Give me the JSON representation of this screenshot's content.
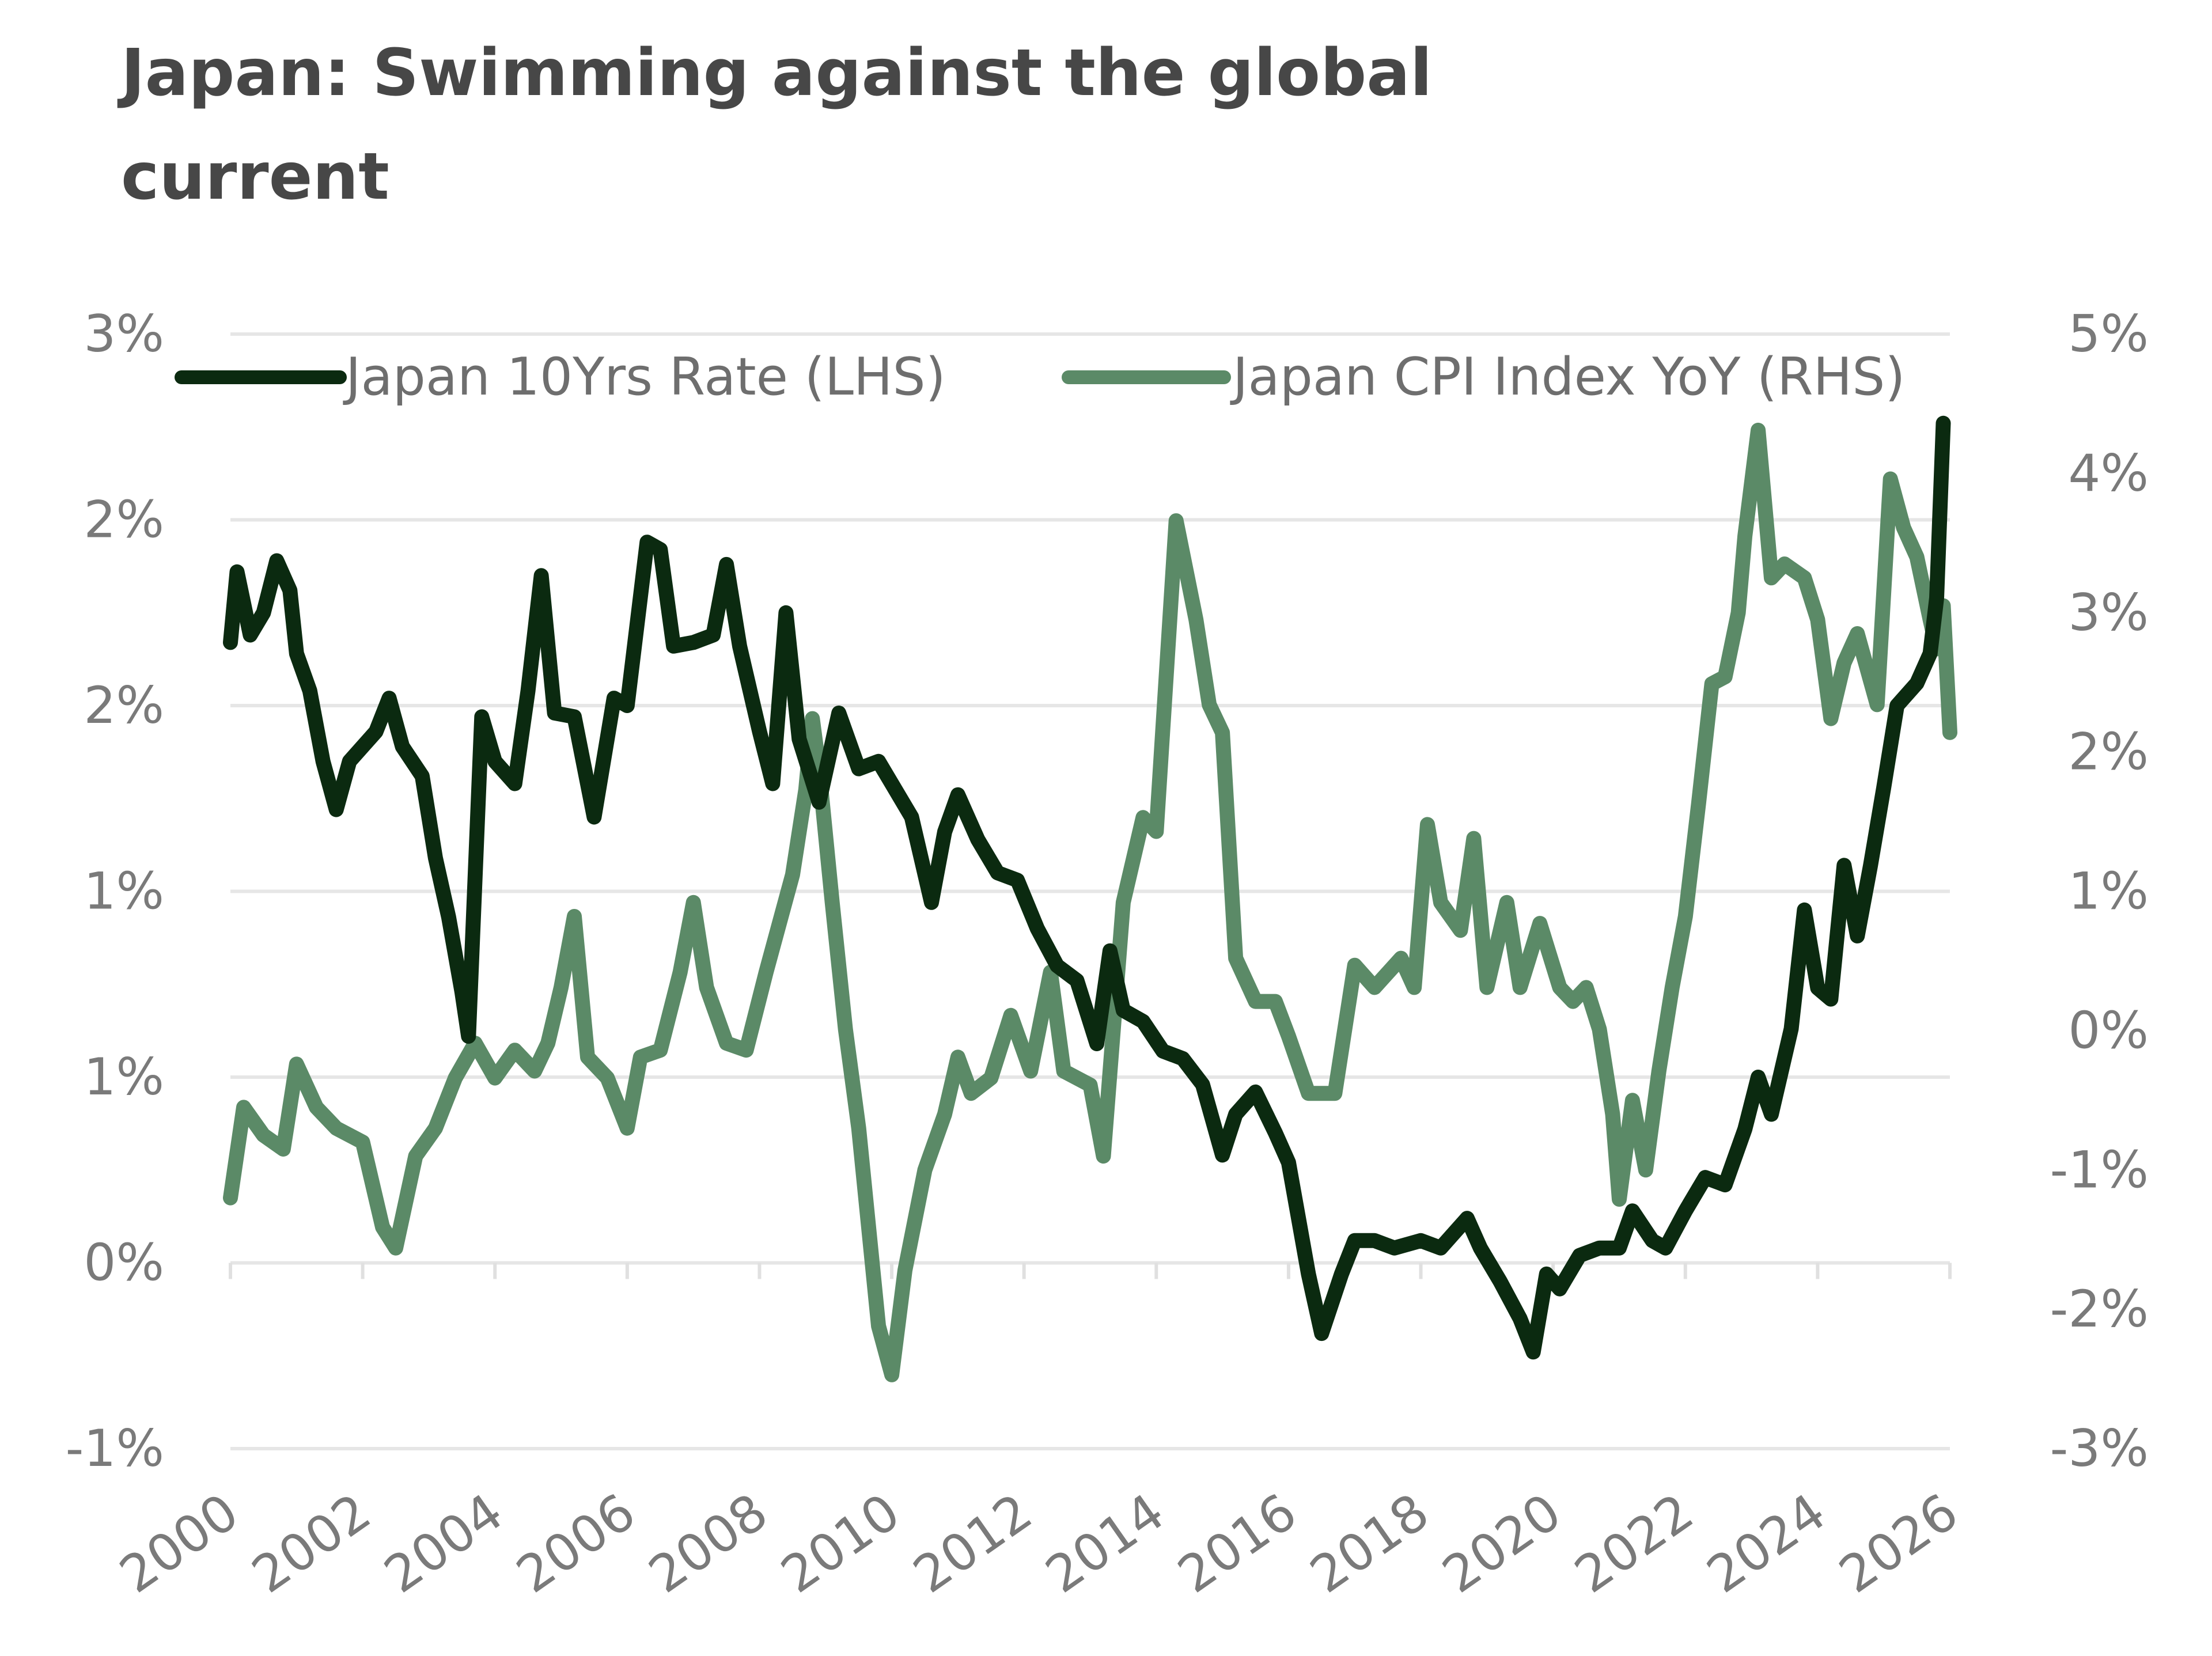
{
  "chart_data": {
    "type": "line",
    "title": "Japan: Swimming against the global current",
    "title_lines": [
      "Japan: Swimming against the global",
      "current"
    ],
    "xlabel": "",
    "ylabel_left": "",
    "ylabel_right": "",
    "x_range": [
      2000,
      2026
    ],
    "x_ticks": [
      2000,
      2002,
      2004,
      2006,
      2008,
      2010,
      2012,
      2014,
      2016,
      2018,
      2020,
      2022,
      2024,
      2026
    ],
    "x_tick_labels": [
      "2000",
      "2002",
      "2004",
      "2006",
      "2008",
      "2010",
      "2012",
      "2014",
      "2016",
      "2018",
      "2020",
      "2022",
      "2024",
      "2026"
    ],
    "y_left": {
      "range": [
        -0.5,
        2.5
      ],
      "ticks": [
        2.5,
        2.0,
        1.5,
        1.0,
        0.5,
        0.0,
        -0.5
      ],
      "tick_labels": [
        "3%",
        "2%",
        "2%",
        "1%",
        "1%",
        "0%",
        "-1%"
      ]
    },
    "y_right": {
      "range": [
        -3,
        5
      ],
      "ticks": [
        5,
        4,
        3,
        2,
        1,
        0,
        -1,
        -2,
        -3
      ],
      "tick_labels": [
        "5%",
        "4%",
        "3%",
        "2%",
        "1%",
        "0%",
        "-1%",
        "-2%",
        "-3%"
      ]
    },
    "grid": true,
    "legend_position": "top",
    "series": [
      {
        "name": "Japan 10Yrs Rate (LHS)",
        "axis": "left",
        "color": "#0b2a10",
        "x": [
          2000.0,
          2000.1,
          2000.3,
          2000.5,
          2000.7,
          2000.9,
          2001.0,
          2001.2,
          2001.4,
          2001.6,
          2001.8,
          2002.0,
          2002.2,
          2002.4,
          2002.6,
          2002.9,
          2003.1,
          2003.3,
          2003.5,
          2003.6,
          2003.8,
          2004.0,
          2004.3,
          2004.5,
          2004.7,
          2004.9,
          2005.2,
          2005.5,
          2005.8,
          2006.0,
          2006.3,
          2006.5,
          2006.7,
          2007.0,
          2007.3,
          2007.5,
          2007.7,
          2008.0,
          2008.2,
          2008.4,
          2008.6,
          2008.9,
          2009.2,
          2009.5,
          2009.8,
          2010.0,
          2010.3,
          2010.6,
          2010.8,
          2011.0,
          2011.3,
          2011.6,
          2011.9,
          2012.2,
          2012.5,
          2012.8,
          2013.1,
          2013.3,
          2013.5,
          2013.8,
          2014.1,
          2014.4,
          2014.7,
          2015.0,
          2015.2,
          2015.5,
          2015.8,
          2016.0,
          2016.3,
          2016.5,
          2016.8,
          2017.0,
          2017.3,
          2017.6,
          2018.0,
          2018.3,
          2018.7,
          2018.9,
          2019.2,
          2019.5,
          2019.7,
          2019.9,
          2020.1,
          2020.4,
          2020.7,
          2021.0,
          2021.2,
          2021.5,
          2021.7,
          2022.0,
          2022.3,
          2022.6,
          2022.9,
          2023.1,
          2023.3,
          2023.6,
          2023.8,
          2024.0,
          2024.2,
          2024.4,
          2024.6,
          2024.8,
          2025.0,
          2025.2,
          2025.5,
          2025.7,
          2025.8,
          2025.9
        ],
        "values": [
          1.67,
          1.86,
          1.69,
          1.75,
          1.89,
          1.81,
          1.64,
          1.54,
          1.35,
          1.22,
          1.35,
          1.39,
          1.43,
          1.52,
          1.39,
          1.31,
          1.09,
          0.93,
          0.73,
          0.61,
          1.47,
          1.35,
          1.29,
          1.54,
          1.85,
          1.48,
          1.47,
          1.2,
          1.52,
          1.5,
          1.94,
          1.92,
          1.66,
          1.67,
          1.69,
          1.88,
          1.66,
          1.43,
          1.29,
          1.75,
          1.41,
          1.24,
          1.48,
          1.33,
          1.35,
          1.29,
          1.2,
          0.97,
          1.16,
          1.26,
          1.14,
          1.05,
          1.03,
          0.9,
          0.8,
          0.76,
          0.59,
          0.84,
          0.68,
          0.65,
          0.57,
          0.55,
          0.48,
          0.29,
          0.4,
          0.46,
          0.35,
          0.27,
          -0.03,
          -0.19,
          -0.03,
          0.06,
          0.06,
          0.04,
          0.06,
          0.04,
          0.12,
          0.04,
          -0.05,
          -0.15,
          -0.24,
          -0.03,
          -0.07,
          0.02,
          0.04,
          0.04,
          0.14,
          0.06,
          0.04,
          0.14,
          0.23,
          0.21,
          0.36,
          0.5,
          0.4,
          0.63,
          0.95,
          0.74,
          0.71,
          1.07,
          0.88,
          1.07,
          1.28,
          1.5,
          1.56,
          1.64,
          1.79,
          2.26
        ]
      },
      {
        "name": "Japan CPI Index YoY (RHS)",
        "axis": "right",
        "color": "#5b8a67",
        "x": [
          2000.0,
          2000.2,
          2000.5,
          2000.8,
          2001.0,
          2001.3,
          2001.6,
          2002.0,
          2002.3,
          2002.5,
          2002.8,
          2003.1,
          2003.4,
          2003.7,
          2004.0,
          2004.3,
          2004.6,
          2004.8,
          2005.0,
          2005.2,
          2005.4,
          2005.7,
          2006.0,
          2006.2,
          2006.5,
          2006.8,
          2007.0,
          2007.2,
          2007.5,
          2007.8,
          2008.1,
          2008.3,
          2008.5,
          2008.7,
          2008.8,
          2008.9,
          2009.1,
          2009.3,
          2009.5,
          2009.8,
          2010.0,
          2010.2,
          2010.5,
          2010.8,
          2011.0,
          2011.2,
          2011.5,
          2011.8,
          2012.1,
          2012.4,
          2012.6,
          2013.0,
          2013.2,
          2013.5,
          2013.8,
          2014.0,
          2014.3,
          2014.6,
          2014.8,
          2015.0,
          2015.2,
          2015.5,
          2015.8,
          2016.0,
          2016.3,
          2016.7,
          2017.0,
          2017.3,
          2017.7,
          2017.9,
          2018.1,
          2018.3,
          2018.6,
          2018.8,
          2019.0,
          2019.3,
          2019.5,
          2019.8,
          2020.1,
          2020.3,
          2020.5,
          2020.7,
          2020.9,
          2021.0,
          2021.2,
          2021.4,
          2021.6,
          2021.8,
          2022.0,
          2022.2,
          2022.4,
          2022.6,
          2022.8,
          2022.9,
          2023.1,
          2023.3,
          2023.5,
          2023.8,
          2024.0,
          2024.2,
          2024.4,
          2024.6,
          2024.9,
          2025.0,
          2025.1,
          2025.3,
          2025.5,
          2025.7,
          2025.8,
          2025.9,
          2026.0
        ],
        "values": [
          -1.2,
          -0.55,
          -0.75,
          -0.85,
          -0.24,
          -0.55,
          -0.7,
          -0.8,
          -1.41,
          -1.56,
          -0.9,
          -0.7,
          -0.34,
          -0.09,
          -0.34,
          -0.14,
          -0.29,
          -0.09,
          0.31,
          0.82,
          -0.19,
          -0.34,
          -0.7,
          -0.19,
          -0.14,
          0.42,
          0.92,
          0.31,
          -0.09,
          -0.14,
          0.42,
          0.77,
          1.12,
          1.73,
          2.24,
          1.88,
          0.92,
          0.01,
          -0.7,
          -2.12,
          -2.47,
          -1.72,
          -1.0,
          -0.6,
          -0.19,
          -0.45,
          -0.34,
          0.11,
          -0.29,
          0.42,
          -0.29,
          -0.39,
          -0.9,
          0.92,
          1.53,
          1.43,
          3.66,
          2.95,
          2.34,
          2.14,
          0.52,
          0.21,
          0.21,
          -0.04,
          -0.45,
          -0.45,
          0.47,
          0.31,
          0.52,
          0.31,
          1.48,
          0.92,
          0.72,
          1.38,
          0.31,
          0.92,
          0.31,
          0.77,
          0.31,
          0.21,
          0.31,
          0.01,
          -0.6,
          -1.21,
          -0.5,
          -1.0,
          -0.29,
          0.31,
          0.82,
          1.63,
          2.49,
          2.54,
          3.0,
          3.55,
          4.31,
          3.25,
          3.35,
          3.25,
          2.95,
          2.24,
          2.64,
          2.85,
          2.34,
          3.15,
          3.96,
          3.61,
          3.4,
          2.95,
          2.74,
          3.05,
          2.14
        ]
      }
    ]
  }
}
